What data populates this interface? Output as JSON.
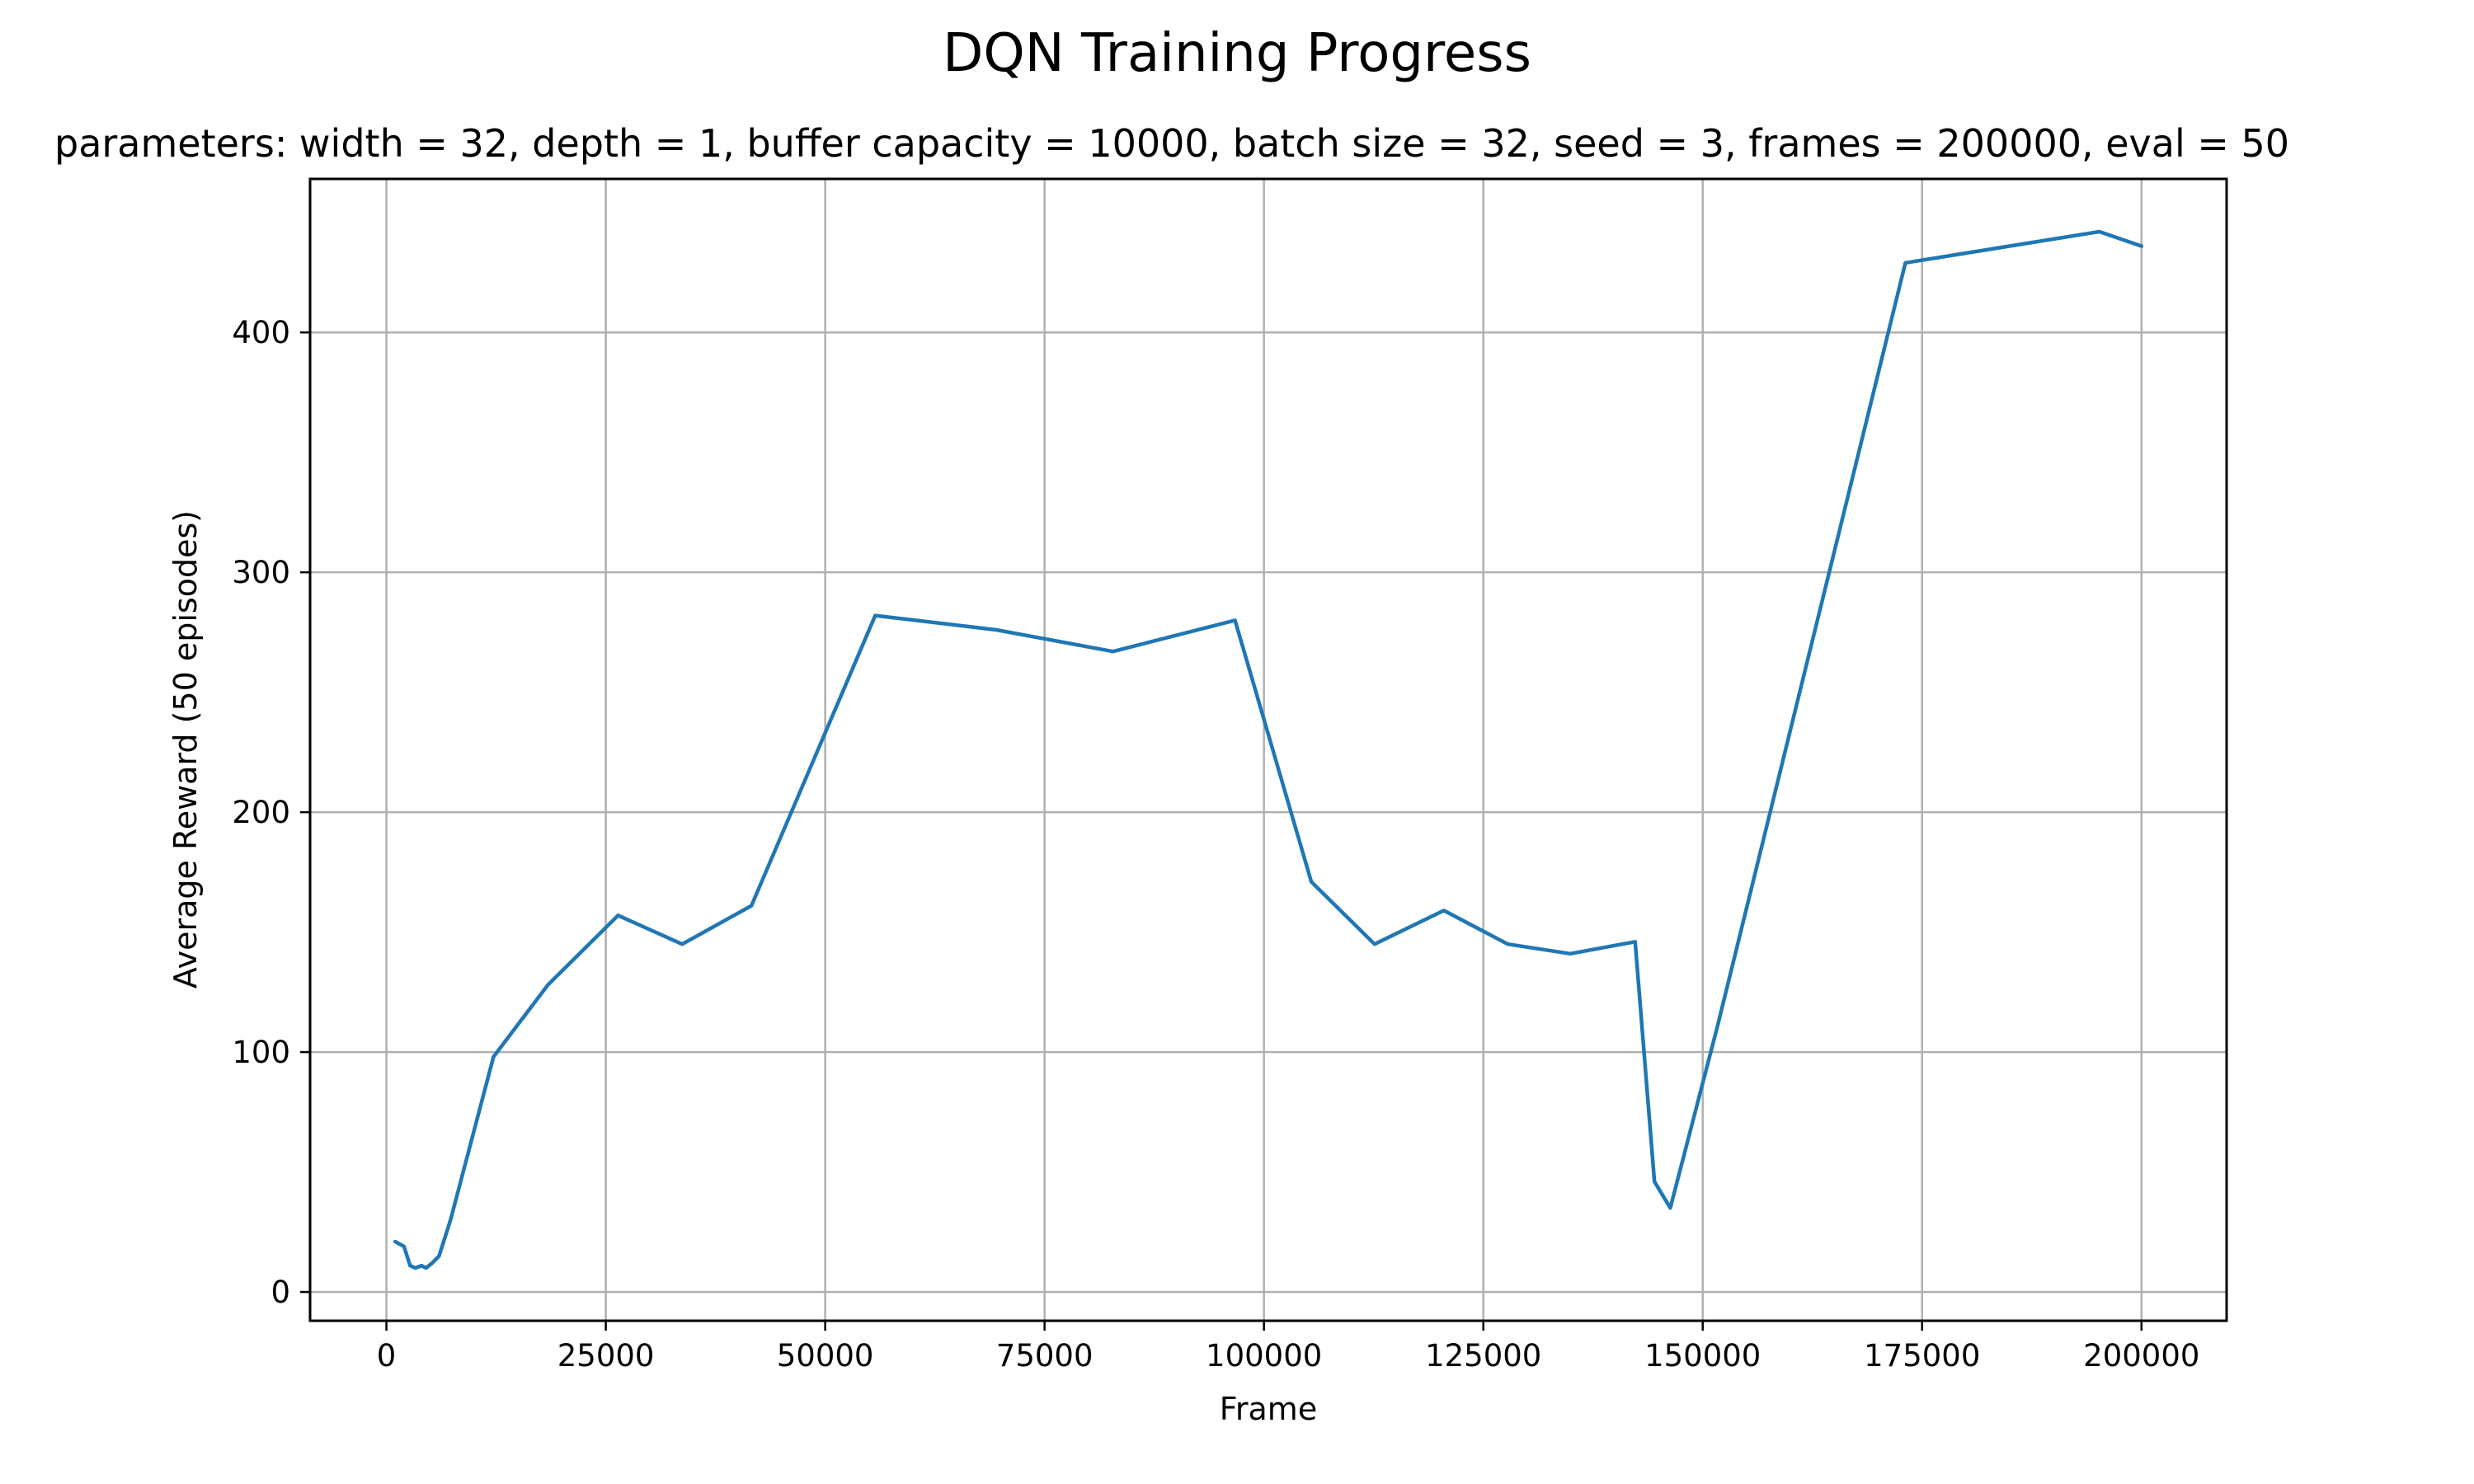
{
  "chart_data": {
    "type": "line",
    "title": "DQN Training Progress",
    "subtitle": "parameters: width = 32, depth = 1, buffer capacity = 10000, batch size = 32, seed = 3, frames = 200000, eval = 50",
    "xlabel": "Frame",
    "ylabel": "Average Reward (50 episodes)",
    "xlim": [
      -8700,
      209700
    ],
    "ylim": [
      -12,
      464
    ],
    "xticks": [
      0,
      25000,
      50000,
      75000,
      100000,
      125000,
      150000,
      175000,
      200000
    ],
    "yticks": [
      0,
      100,
      200,
      300,
      400
    ],
    "grid": true,
    "color": "#1f77b4",
    "series": [
      {
        "x": [
          1000,
          2000,
          2700,
          3300,
          4000,
          4500,
          5200,
          6000,
          7300,
          12200,
          18400,
          26400,
          33700,
          41600,
          55700,
          69500,
          82800,
          96700,
          105400,
          112600,
          120500,
          127800,
          134900,
          142300,
          144500,
          146300,
          151700,
          173100,
          195200,
          200000
        ],
        "y": [
          21,
          19,
          11,
          10,
          11,
          10,
          12,
          15,
          30,
          98,
          128,
          157,
          145,
          161,
          282,
          276,
          267,
          280,
          171,
          145,
          159,
          145,
          141,
          146,
          46,
          35,
          111,
          429,
          442,
          436
        ]
      }
    ]
  }
}
